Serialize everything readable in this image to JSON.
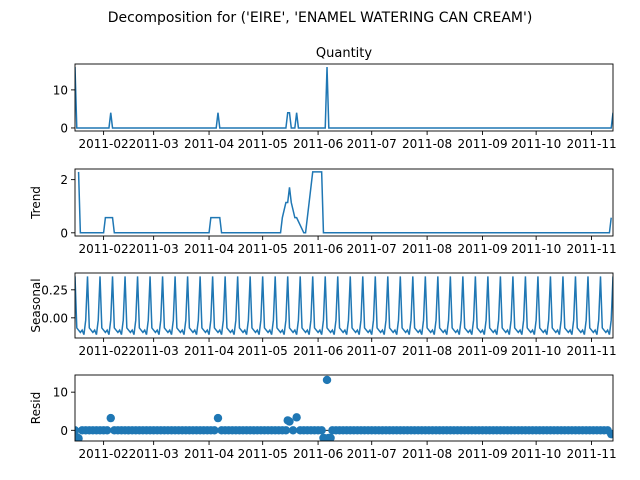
{
  "chart_data": {
    "type": "line",
    "title": "Decomposition for ('EIRE', 'ENAMEL WATERING CAN CREAM')",
    "x_range": [
      "2011-01-16",
      "2011-11-13"
    ],
    "x_ticks": [
      "2011-02",
      "2011-03",
      "2011-04",
      "2011-05",
      "2011-06",
      "2011-07",
      "2011-08",
      "2011-09",
      "2011-10",
      "2011-11"
    ],
    "line_color": "#1f77b4",
    "grid": false,
    "panels": [
      {
        "kind": "observed",
        "subtitle": "Quantity",
        "ylabel": "",
        "ylim": [
          -0.8,
          16.8
        ],
        "yticks": [
          0,
          10
        ],
        "series": [
          {
            "type": "line",
            "x": [
              "2011-01-16",
              "2011-01-17",
              "2011-02-04",
              "2011-02-05",
              "2011-02-06",
              "2011-04-05",
              "2011-04-06",
              "2011-04-07",
              "2011-05-14",
              "2011-05-15",
              "2011-05-16",
              "2011-05-17",
              "2011-05-19",
              "2011-05-20",
              "2011-05-21",
              "2011-06-05",
              "2011-06-06",
              "2011-06-07",
              "2011-11-12",
              "2011-11-13"
            ],
            "y": [
              16,
              0,
              0,
              4,
              0,
              0,
              4,
              0,
              0,
              4,
              4,
              0,
              0,
              4,
              0,
              0,
              16,
              0,
              0,
              4
            ]
          }
        ]
      },
      {
        "kind": "trend",
        "subtitle": "",
        "ylabel": "Trend",
        "ylim": [
          -0.12,
          2.4
        ],
        "yticks": [
          0,
          2
        ],
        "series": [
          {
            "type": "line",
            "x": [
              "2011-01-18",
              "2011-01-19",
              "2011-02-01",
              "2011-02-02",
              "2011-02-06",
              "2011-02-07",
              "2011-04-01",
              "2011-04-02",
              "2011-04-07",
              "2011-04-08",
              "2011-05-11",
              "2011-05-12",
              "2011-05-14",
              "2011-05-15",
              "2011-05-16",
              "2011-05-17",
              "2011-05-19",
              "2011-05-20",
              "2011-05-24",
              "2011-05-25",
              "2011-05-29",
              "2011-05-30",
              "2011-06-03",
              "2011-06-04",
              "2011-11-11",
              "2011-11-12"
            ],
            "y": [
              2.29,
              0,
              0,
              0.57,
              0.57,
              0,
              0,
              0.57,
              0.57,
              0,
              0,
              0.57,
              1.14,
              1.14,
              1.71,
              1.14,
              0.57,
              0.57,
              0,
              0,
              2.29,
              2.29,
              2.29,
              0,
              0,
              0.57
            ]
          }
        ]
      },
      {
        "kind": "seasonal",
        "subtitle": "",
        "ylabel": "Seasonal",
        "ylim": [
          -0.18,
          0.4
        ],
        "yticks": [
          -0.0,
          0.25
        ],
        "ytick_labels": [
          "0.00",
          "0.25"
        ],
        "series": [
          {
            "type": "line",
            "period_days": 7,
            "start": "2011-01-16",
            "end": "2011-11-13",
            "pattern": [
              0.37,
              -0.09,
              -0.11,
              -0.13,
              -0.11,
              -0.15,
              -0.02
            ]
          }
        ]
      },
      {
        "kind": "resid",
        "subtitle": "",
        "ylabel": "Resid",
        "ylim": [
          -2.8,
          14.5
        ],
        "yticks": [
          0,
          10
        ],
        "zero_line": true,
        "series": [
          {
            "type": "scatter",
            "x": [
              "2011-01-17",
              "2011-01-18",
              "2011-02-05",
              "2011-04-06",
              "2011-05-15",
              "2011-05-16",
              "2011-05-20",
              "2011-06-04",
              "2011-06-05",
              "2011-06-06",
              "2011-06-07",
              "2011-06-08",
              "2011-11-12"
            ],
            "y": [
              -1.8,
              -2.1,
              3.2,
              3.2,
              2.6,
              2.3,
              3.4,
              -2.0,
              -2.1,
              13.2,
              -2.0,
              -2.0,
              -1.0
            ]
          }
        ]
      }
    ]
  }
}
